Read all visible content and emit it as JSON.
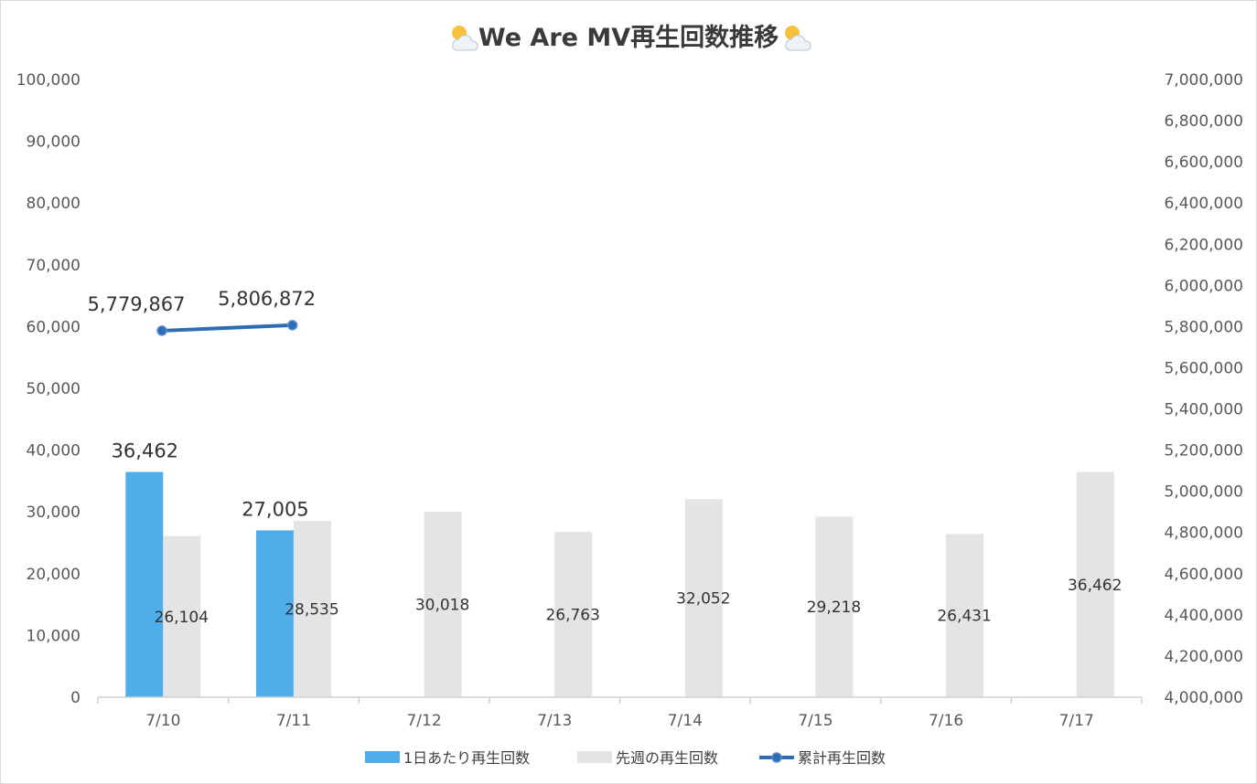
{
  "chart_data": {
    "type": "bar",
    "title": "We Are MV再生回数推移",
    "title_icon": "sun-behind-cloud-icon",
    "categories": [
      "7/10",
      "7/11",
      "7/12",
      "7/13",
      "7/14",
      "7/15",
      "7/16",
      "7/17"
    ],
    "series": [
      {
        "name": "1日あたり再生回数",
        "type": "bar",
        "axis": "left",
        "color": "#4fadea",
        "values": [
          36462,
          27005,
          null,
          null,
          null,
          null,
          null,
          null
        ],
        "labels": [
          "36,462",
          "27,005",
          "",
          "",
          "",
          "",
          "",
          ""
        ]
      },
      {
        "name": "先週の再生回数",
        "type": "bar",
        "axis": "left",
        "color": "#e2e4e6",
        "values": [
          26104,
          28535,
          30018,
          26763,
          32052,
          29218,
          26431,
          36462
        ],
        "labels": [
          "26,104",
          "28,535",
          "30,018",
          "26,763",
          "32,052",
          "29,218",
          "26,431",
          "36,462"
        ]
      },
      {
        "name": "累計再生回数",
        "type": "line",
        "axis": "right",
        "color": "#2e6db4",
        "values": [
          5779867,
          5806872,
          null,
          null,
          null,
          null,
          null,
          null
        ],
        "labels": [
          "5,779,867",
          "5,806,872",
          "",
          "",
          "",
          "",
          "",
          ""
        ]
      }
    ],
    "left_axis": {
      "ylim": [
        0,
        100000
      ],
      "ticks": [
        "0",
        "10,000",
        "20,000",
        "30,000",
        "40,000",
        "50,000",
        "60,000",
        "70,000",
        "80,000",
        "90,000",
        "100,000"
      ]
    },
    "right_axis": {
      "ylim": [
        4000000,
        7000000
      ],
      "ticks": [
        "4,000,000",
        "4,200,000",
        "4,400,000",
        "4,600,000",
        "4,800,000",
        "5,000,000",
        "5,200,000",
        "5,400,000",
        "5,600,000",
        "5,800,000",
        "6,000,000",
        "6,200,000",
        "6,400,000",
        "6,600,000",
        "6,800,000",
        "7,000,000"
      ]
    },
    "grid": false,
    "legend": "bottom"
  }
}
